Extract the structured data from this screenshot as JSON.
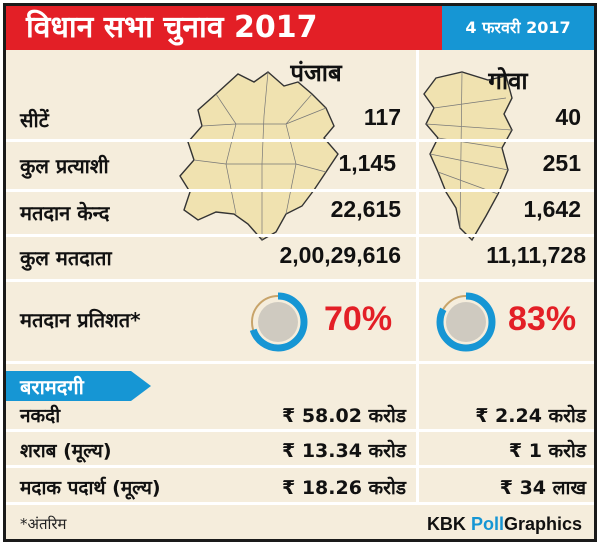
{
  "header": {
    "title": "विधान सभा चुनाव 2017",
    "date": "4 फरवरी 2017",
    "title_color": "#e31f26",
    "date_color": "#1696d4"
  },
  "columns": {
    "punjab": "पंजाब",
    "goa": "गोवा"
  },
  "rows": [
    {
      "label": "सीटें",
      "punjab": "117",
      "goa": "40"
    },
    {
      "label": "कुल प्रत्याशी",
      "punjab": "1,145",
      "goa": "251"
    },
    {
      "label": "मतदान केन्द",
      "punjab": "22,615",
      "goa": "1,642"
    },
    {
      "label": "कुल मतदाता",
      "punjab": "2,00,29,616",
      "goa": "11,11,728"
    }
  ],
  "turnout": {
    "label": "मतदान प्रतिशत*",
    "punjab": "70%",
    "goa": "83%",
    "punjab_fraction": 0.7,
    "goa_fraction": 0.83
  },
  "recovery": {
    "title": "बरामदगी",
    "rows": [
      {
        "label": "नकदी",
        "punjab": "₹ 58.02 करोड",
        "goa": "₹ 2.24 करोड"
      },
      {
        "label": "शराब (मूल्य)",
        "punjab": "₹ 13.34 करोड",
        "goa": "₹ 1 करोड"
      },
      {
        "label": "मदाक पदार्थ (मूल्य)",
        "punjab": "₹ 18.26 करोड",
        "goa": "₹ 34 लाख"
      }
    ]
  },
  "footer": {
    "note": "*अंतरिम",
    "brand_kbk": "KBK",
    "brand_poll": "Poll",
    "brand_graphics": "Graphics"
  }
}
